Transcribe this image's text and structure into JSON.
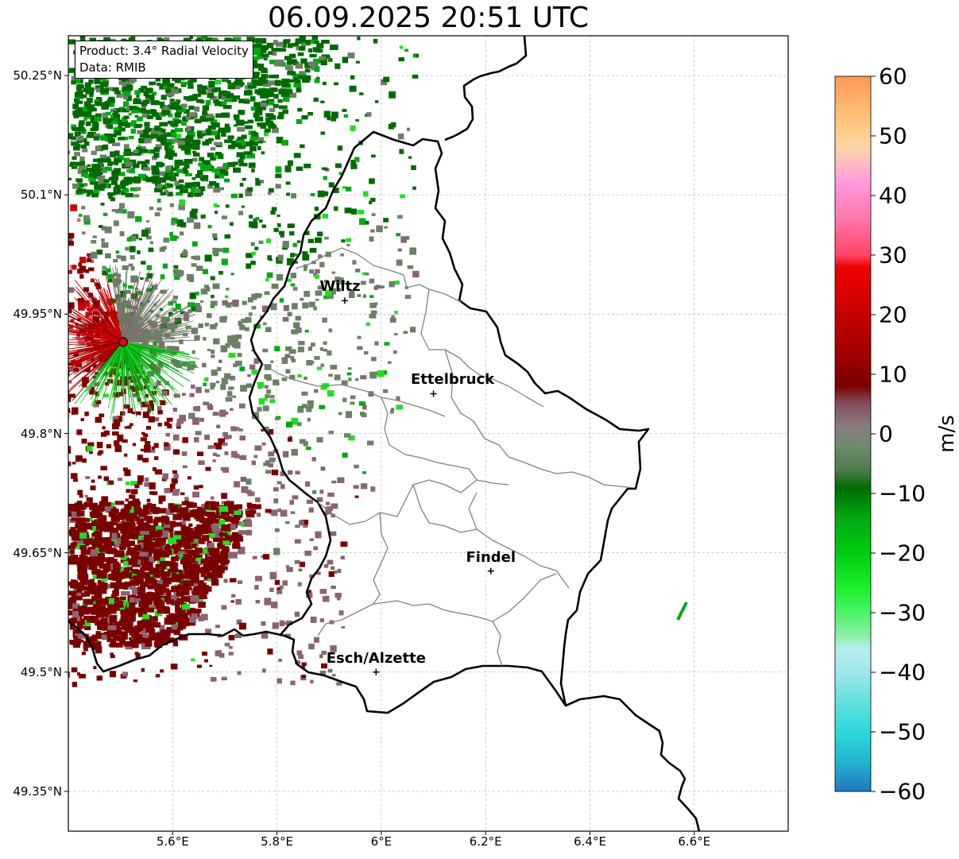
{
  "title": "06.09.2025 20:51 UTC",
  "info": {
    "product": "Product: 3.4° Radial Velocity",
    "source": "Data: RMIB"
  },
  "axes": {
    "lat_labels": [
      "50.25°N",
      "50.1°N",
      "49.95°N",
      "49.8°N",
      "49.65°N",
      "49.5°N",
      "49.35°N"
    ],
    "lat_values": [
      50.25,
      50.1,
      49.95,
      49.8,
      49.65,
      49.5,
      49.35
    ],
    "lon_labels": [
      "5.6°E",
      "5.8°E",
      "6°E",
      "6.2°E",
      "6.4°E",
      "6.6°E"
    ],
    "lon_values": [
      5.6,
      5.8,
      6.0,
      6.2,
      6.4,
      6.6
    ],
    "lon_range": [
      5.4,
      6.78
    ],
    "lat_range": [
      49.3,
      50.3
    ],
    "grid": true
  },
  "cities": [
    {
      "name": "Wiltz",
      "lon": 5.93,
      "lat": 49.967
    },
    {
      "name": "Ettelbruck",
      "lon": 6.1,
      "lat": 49.85
    },
    {
      "name": "Findel",
      "lon": 6.21,
      "lat": 49.627
    },
    {
      "name": "Esch/Alzette",
      "lon": 5.99,
      "lat": 49.5
    }
  ],
  "radar_site": {
    "lon": 5.505,
    "lat": 49.915,
    "color": "#e00000"
  },
  "colorbar": {
    "label": "m/s",
    "min": -60,
    "max": 60,
    "tick_labels": [
      "60",
      "50",
      "40",
      "30",
      "20",
      "10",
      "0",
      "−10",
      "−20",
      "−30",
      "−40",
      "−50",
      "−60"
    ],
    "tick_values": [
      60,
      50,
      40,
      30,
      20,
      10,
      0,
      -10,
      -20,
      -30,
      -40,
      -50,
      -60
    ],
    "stops": [
      {
        "v": -60,
        "c": "#1f78c1"
      },
      {
        "v": -55,
        "c": "#24b4cf"
      },
      {
        "v": -50,
        "c": "#2ed9d9"
      },
      {
        "v": -45,
        "c": "#62e0e0"
      },
      {
        "v": -40,
        "c": "#9fe8e8"
      },
      {
        "v": -36,
        "c": "#b8eef0"
      },
      {
        "v": -34,
        "c": "#8cf0a8"
      },
      {
        "v": -30,
        "c": "#4cf26a"
      },
      {
        "v": -26,
        "c": "#1cf02c"
      },
      {
        "v": -20,
        "c": "#00cc10"
      },
      {
        "v": -14,
        "c": "#00a812"
      },
      {
        "v": -9,
        "c": "#006a00"
      },
      {
        "v": -6,
        "c": "#4d7d4d"
      },
      {
        "v": -2,
        "c": "#6e8a6e"
      },
      {
        "v": 1,
        "c": "#877d7d"
      },
      {
        "v": 5,
        "c": "#855060"
      },
      {
        "v": 8,
        "c": "#7a0000"
      },
      {
        "v": 16,
        "c": "#b00000"
      },
      {
        "v": 28,
        "c": "#f00000"
      },
      {
        "v": 30,
        "c": "#ff4466"
      },
      {
        "v": 36,
        "c": "#ff77aa"
      },
      {
        "v": 42,
        "c": "#ff99dd"
      },
      {
        "v": 48,
        "c": "#ffd5aa"
      },
      {
        "v": 52,
        "c": "#ffc880"
      },
      {
        "v": 60,
        "c": "#ff9955"
      }
    ]
  },
  "echo_colors": {
    "dark_green": "#006a00",
    "green": "#00a812",
    "bright_green": "#22dd22",
    "gray_green": "#6b8065",
    "mauve": "#8a6470",
    "dark_red": "#7a0000",
    "red": "#cc0000",
    "pink": "#dd6688"
  }
}
